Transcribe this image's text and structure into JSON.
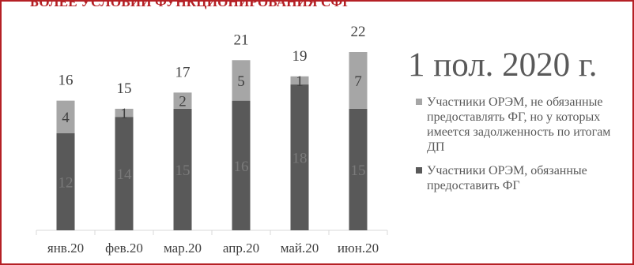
{
  "slide": {
    "title": "БОЛЕЕ УСЛОВИЙ ФУНКЦИОНИРОВАНИЯ СФГ",
    "period_label": "1 пол. 2020 г.",
    "frame_color": "#b52025",
    "title_color": "#b52025"
  },
  "chart_data": {
    "type": "bar",
    "stacked": true,
    "categories": [
      "янв.20",
      "фев.20",
      "мар.20",
      "апр.20",
      "май.20",
      "июн.20"
    ],
    "series": [
      {
        "name": "Участники ОРЭМ, обязанные предоставить ФГ",
        "values": [
          12,
          14,
          15,
          16,
          18,
          15
        ],
        "color": "#595959"
      },
      {
        "name": "Участники ОРЭМ, не обязанные предоставлять ФГ, но у которых имеется задолженность по итогам ДП",
        "values": [
          4,
          1,
          2,
          5,
          1,
          7
        ],
        "color": "#a6a6a6"
      }
    ],
    "totals": [
      16,
      15,
      17,
      21,
      19,
      22
    ],
    "ylim": [
      0,
      22
    ],
    "grid": false,
    "legend": "right"
  }
}
